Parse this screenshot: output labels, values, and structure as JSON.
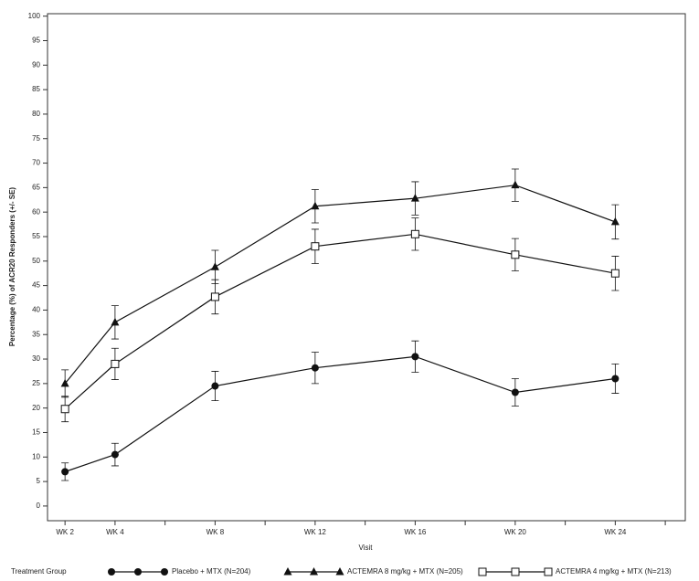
{
  "chart_data": {
    "type": "line",
    "y_label": "Percentage (%) of ACR20 Responders (+/- SE)",
    "x_label": "Visit",
    "legend_title": "Treatment Group",
    "x": [
      2,
      4,
      8,
      12,
      16,
      20,
      24
    ],
    "xlim": [
      1.3,
      26.8
    ],
    "xticks": [
      {
        "value": 2,
        "label": "WK 2"
      },
      {
        "value": 4,
        "label": "WK 4"
      },
      {
        "value": 8,
        "label": "WK 8"
      },
      {
        "value": 12,
        "label": "WK 12"
      },
      {
        "value": 16,
        "label": "WK 16"
      },
      {
        "value": 20,
        "label": "WK 20"
      },
      {
        "value": 24,
        "label": "WK 24"
      }
    ],
    "x_minor_ticks": [
      6,
      10,
      14,
      18,
      22,
      26
    ],
    "ylim": [
      -3,
      100.5
    ],
    "yticks": [
      0,
      5,
      10,
      15,
      20,
      25,
      30,
      35,
      40,
      45,
      50,
      55,
      60,
      65,
      70,
      75,
      80,
      85,
      90,
      95,
      100
    ],
    "series": [
      {
        "name": "Placebo + MTX  (N=204)",
        "color": "#111111",
        "marker": "circle",
        "values": [
          7,
          10.5,
          24.5,
          28.2,
          30.5,
          23.2,
          26
        ],
        "errors": [
          1.8,
          2.3,
          3,
          3.2,
          3.2,
          2.8,
          3
        ]
      },
      {
        "name": "ACTEMRA 8 mg/kg + MTX  (N=205)",
        "color": "#111111",
        "marker": "triangle",
        "values": [
          25,
          37.5,
          48.8,
          61.2,
          62.8,
          65.5,
          58
        ],
        "errors": [
          2.8,
          3.4,
          3.4,
          3.4,
          3.4,
          3.3,
          3.5
        ]
      },
      {
        "name": "ACTEMRA 4 mg/kg + MTX  (N=213)",
        "color": "#111111",
        "marker": "square-open",
        "values": [
          19.8,
          29,
          42.7,
          53,
          55.5,
          51.3,
          47.5
        ],
        "errors": [
          2.6,
          3.2,
          3.5,
          3.5,
          3.3,
          3.3,
          3.5
        ]
      }
    ]
  }
}
